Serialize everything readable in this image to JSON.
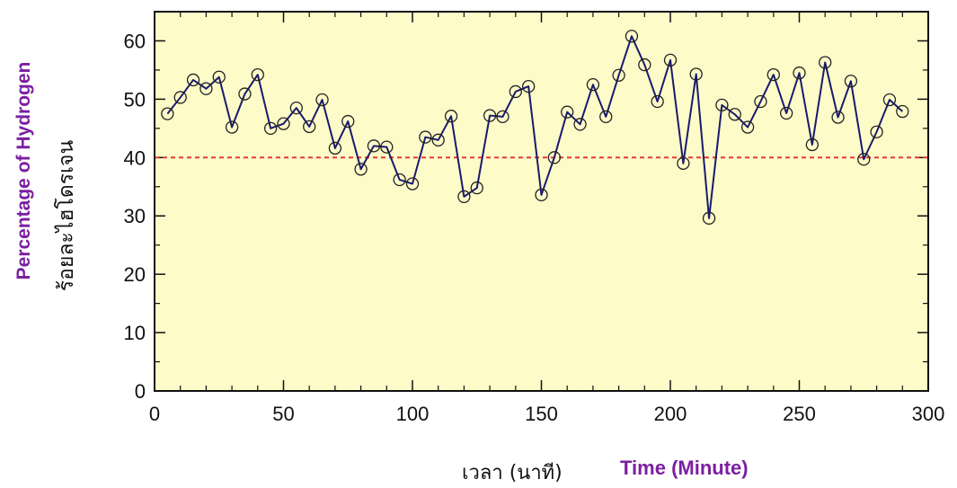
{
  "chart_data": {
    "type": "line",
    "ylabel_en": "Percentage of Hydrogen",
    "ylabel_th": "ร้อยละไฮโดรเจน",
    "xlabel_th": "เวลา (นาที)",
    "xlabel_en": "Time (Minute)",
    "xlim": [
      0,
      300
    ],
    "ylim": [
      0,
      65
    ],
    "xticks": [
      0,
      50,
      100,
      150,
      200,
      250,
      300
    ],
    "yticks": [
      0,
      10,
      20,
      30,
      40,
      50,
      60
    ],
    "reference_line": {
      "y": 40,
      "style": "dashed",
      "color": "#e53935"
    },
    "colors": {
      "background": "#fdfbc8",
      "line": "#1a1a6e",
      "marker": "#222222",
      "axis": "#111111"
    },
    "series": [
      {
        "x": [
          5,
          10,
          15,
          20,
          25,
          30,
          35,
          40,
          45,
          50,
          55,
          60,
          65,
          70,
          75,
          80,
          85,
          90,
          95,
          100,
          105,
          110,
          115,
          120,
          125,
          130,
          135,
          140,
          145,
          150,
          155,
          160,
          165,
          170,
          175,
          180,
          185,
          190,
          195,
          200,
          205,
          210,
          215,
          220,
          225,
          230,
          235,
          240,
          245,
          250,
          255,
          260,
          265,
          270,
          275,
          280,
          285,
          290
        ],
        "y": [
          47.5,
          50.3,
          53.3,
          51.8,
          53.8,
          45.2,
          50.9,
          54.2,
          45.0,
          45.8,
          48.5,
          45.3,
          49.9,
          41.6,
          46.2,
          38.0,
          42.0,
          41.8,
          36.2,
          35.5,
          43.5,
          43.0,
          47.1,
          33.3,
          34.8,
          47.2,
          47.0,
          51.3,
          52.2,
          33.6,
          40.0,
          47.8,
          45.7,
          52.5,
          47.0,
          54.1,
          60.8,
          55.9,
          49.6,
          56.7,
          39.0,
          54.3,
          29.6,
          49.0,
          47.4,
          45.2,
          49.6,
          54.2,
          47.6,
          54.5,
          42.2,
          56.3,
          46.9,
          53.1,
          39.7,
          44.4,
          49.9,
          47.9
        ]
      }
    ]
  }
}
